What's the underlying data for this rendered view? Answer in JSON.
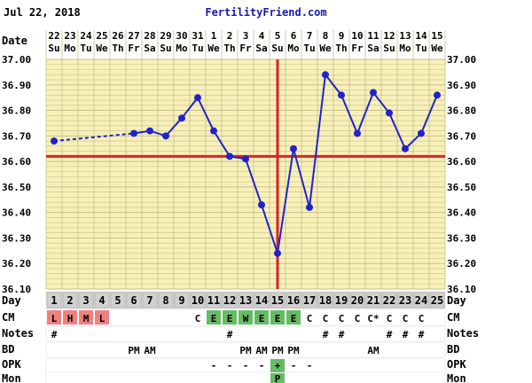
{
  "header": {
    "date": "Jul 22, 2018",
    "site": "FertilityFriend.com"
  },
  "colors": {
    "background": "#f7f0b8",
    "grid": "#c8c08a",
    "line": "#2222cc",
    "coverline": "#dd2222",
    "day_header": "#d0d0d0",
    "cm_pink": "#f08080",
    "cm_green": "#66bb66",
    "opk_green": "#66bb66"
  },
  "chart_data": {
    "type": "line",
    "title": "",
    "row_labels": {
      "date": "Date",
      "day": "Day",
      "cm": "CM",
      "notes": "Notes",
      "bd": "BD",
      "opk": "OPK",
      "mon": "Mon"
    },
    "dates": [
      "22",
      "23",
      "24",
      "25",
      "26",
      "27",
      "28",
      "29",
      "30",
      "31",
      "1",
      "2",
      "3",
      "4",
      "5",
      "6",
      "7",
      "8",
      "9",
      "10",
      "11",
      "12",
      "13",
      "14",
      "15"
    ],
    "weekdays": [
      "Su",
      "Mo",
      "Tu",
      "We",
      "Th",
      "Fr",
      "Sa",
      "Su",
      "Mo",
      "Tu",
      "We",
      "Th",
      "Fr",
      "Sa",
      "Su",
      "Mo",
      "Tu",
      "We",
      "Th",
      "Fr",
      "Sa",
      "Su",
      "Mo",
      "Tu",
      "We"
    ],
    "days": [
      1,
      2,
      3,
      4,
      5,
      6,
      7,
      8,
      9,
      10,
      11,
      12,
      13,
      14,
      15,
      16,
      17,
      18,
      19,
      20,
      21,
      22,
      23,
      24,
      25
    ],
    "ylim": [
      36.1,
      37.0
    ],
    "yticks": [
      "37.00",
      "36.90",
      "36.80",
      "36.70",
      "36.60",
      "36.50",
      "36.40",
      "36.30",
      "36.20",
      "36.10"
    ],
    "coverline": 36.62,
    "ovulation_day": 15,
    "temps": [
      36.68,
      null,
      null,
      null,
      null,
      36.71,
      36.72,
      36.7,
      36.77,
      36.85,
      36.72,
      36.62,
      36.61,
      36.43,
      36.24,
      36.65,
      36.42,
      36.94,
      36.86,
      36.71,
      36.87,
      36.79,
      36.65,
      36.71,
      36.86
    ],
    "dashed_segment": [
      1,
      6
    ],
    "cm": [
      "L",
      "H",
      "M",
      "L",
      "",
      "",
      "",
      "",
      "",
      "C",
      "E",
      "E",
      "W",
      "E",
      "E",
      "E",
      "C",
      "C",
      "C",
      "C",
      "C*",
      "C",
      "C",
      "C",
      ""
    ],
    "cm_colors": [
      "pink",
      "pink",
      "pink",
      "pink",
      "",
      "",
      "",
      "",
      "",
      "",
      "green",
      "green",
      "green",
      "green",
      "green",
      "green",
      "",
      "",
      "",
      "",
      "",
      "",
      "",
      "",
      ""
    ],
    "notes": [
      "#",
      "",
      "",
      "",
      "",
      "",
      "",
      "",
      "",
      "",
      "",
      "#",
      "",
      "",
      "",
      "",
      "",
      "#",
      "#",
      "",
      "",
      "#",
      "#",
      "#",
      ""
    ],
    "bd": [
      "",
      "",
      "",
      "",
      "",
      "PM",
      "AM",
      "",
      "",
      "",
      "",
      "",
      "PM",
      "AM",
      "PM",
      "PM",
      "",
      "",
      "",
      "",
      "AM",
      "",
      "",
      "",
      ""
    ],
    "opk": [
      "",
      "",
      "",
      "",
      "",
      "",
      "",
      "",
      "",
      "",
      "-",
      "-",
      "-",
      "-",
      "+",
      "-",
      "-",
      "",
      "",
      "",
      "",
      "",
      "",
      "",
      ""
    ],
    "mon": [
      "",
      "",
      "",
      "",
      "",
      "",
      "",
      "",
      "",
      "",
      "",
      "",
      "",
      "",
      "P",
      "",
      "",
      "",
      "",
      "",
      "",
      "",
      "",
      "",
      ""
    ]
  }
}
